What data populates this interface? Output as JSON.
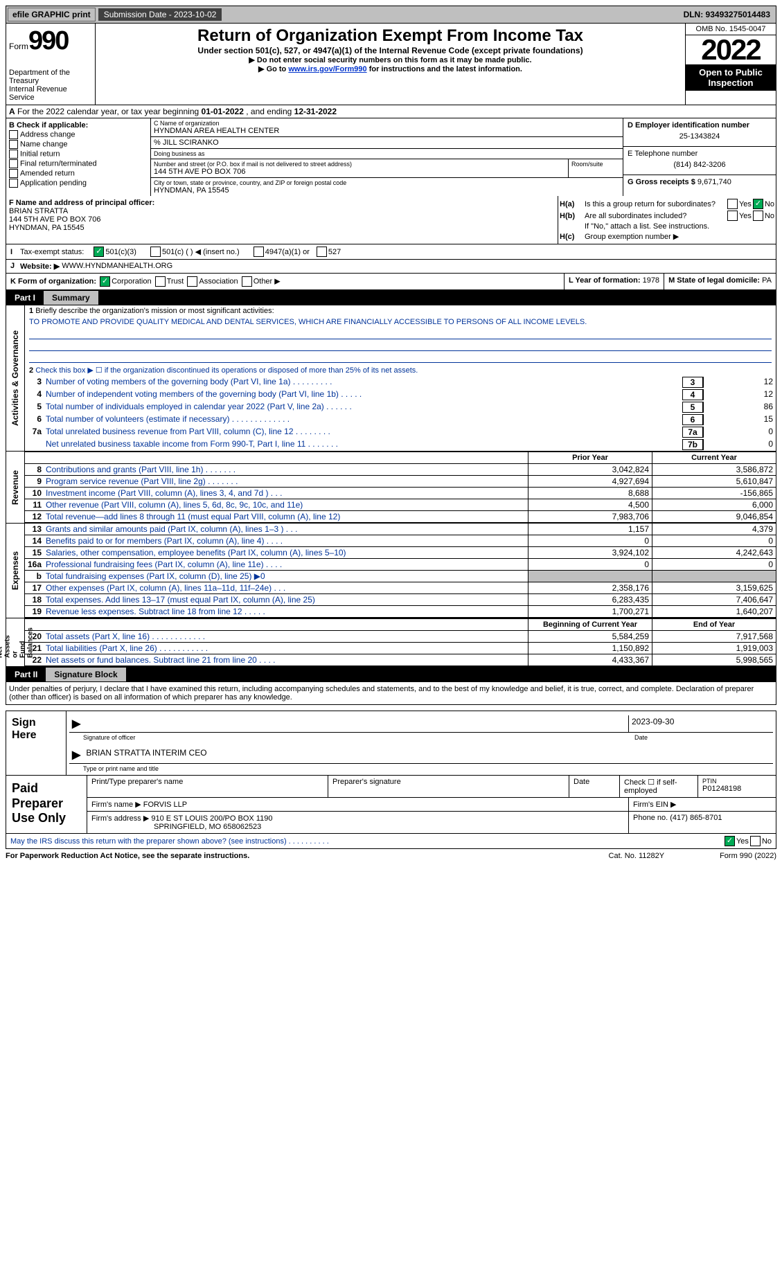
{
  "topbar": {
    "efile": "efile GRAPHIC print",
    "sub": "Submission Date - 2023-10-02",
    "dln": "DLN: 93493275014483"
  },
  "hdr": {
    "formword": "Form",
    "num990": "990",
    "dept": "Department of the Treasury\nInternal Revenue Service",
    "title": "Return of Organization Exempt From Income Tax",
    "sub": "Under section 501(c), 527, or 4947(a)(1) of the Internal Revenue Code (except private foundations)",
    "note1": "▶ Do not enter social security numbers on this form as it may be made public.",
    "note2a": "▶ Go to ",
    "note2link": "www.irs.gov/Form990",
    "note2b": " for instructions and the latest information.",
    "omb": "OMB No. 1545-0047",
    "year": "2022",
    "inspect": "Open to Public Inspection"
  },
  "rowA": {
    "a": "A",
    "txt1": "For the 2022 calendar year, or tax year beginning ",
    "d1": "01-01-2022",
    "txt2": " , and ending ",
    "d2": "12-31-2022"
  },
  "secB": {
    "hdr": "B Check if applicable:",
    "opts": [
      "Address change",
      "Name change",
      "Initial return",
      "Final return/terminated",
      "Amended return",
      "Application pending"
    ]
  },
  "secC": {
    "nameLbl": "C Name of organization",
    "name": "HYNDMAN AREA HEALTH CENTER",
    "care": "% JILL SCIRANKO",
    "dba": "Doing business as",
    "addrLbl": "Number and street (or P.O. box if mail is not delivered to street address)",
    "roomLbl": "Room/suite",
    "addr": "144 5TH AVE PO BOX 706",
    "cityLbl": "City or town, state or province, country, and ZIP or foreign postal code",
    "city": "HYNDMAN, PA  15545"
  },
  "secD": {
    "lbl": "D Employer identification number",
    "val": "25-1343824"
  },
  "secE": {
    "lbl": "E Telephone number",
    "val": "(814) 842-3206"
  },
  "secG": {
    "lbl": "G Gross receipts $",
    "val": "9,671,740"
  },
  "secF": {
    "lbl": "F Name and address of principal officer:",
    "name": "BRIAN STRATTA",
    "addr": "144 5TH AVE PO BOX 706",
    "city": "HYNDMAN, PA  15545"
  },
  "secH": {
    "a": "H(a)",
    "atxt": "Is this a group return for subordinates?",
    "b": "H(b)",
    "btxt": "Are all subordinates included?",
    "bnote": "If \"No,\" attach a list. See instructions.",
    "c": "H(c)",
    "ctxt": "Group exemption number ▶",
    "yes": "Yes",
    "no": "No"
  },
  "rowI": {
    "lbl": "I",
    "txt": "Tax-exempt status:",
    "o1": "501(c)(3)",
    "o2": "501(c) (   ) ◀ (insert no.)",
    "o3": "4947(a)(1) or",
    "o4": "527"
  },
  "rowJ": {
    "lbl": "J",
    "txt": "Website: ▶",
    "val": "WWW.HYNDMANHEALTH.ORG"
  },
  "rowK": {
    "k": "K Form of organization:",
    "opts": [
      "Corporation",
      "Trust",
      "Association",
      "Other ▶"
    ],
    "l": "L Year of formation: ",
    "lval": "1978",
    "m": "M State of legal domicile: ",
    "mval": "PA"
  },
  "part1": {
    "lbl": "Part I",
    "title": "Summary"
  },
  "p1": {
    "l1": "Briefly describe the organization's mission or most significant activities:",
    "mission": "TO PROMOTE AND PROVIDE QUALITY MEDICAL AND DENTAL SERVICES, WHICH ARE FINANCIALLY ACCESSIBLE TO PERSONS OF ALL INCOME LEVELS.",
    "l2": "Check this box ▶ ☐ if the organization discontinued its operations or disposed of more than 25% of its net assets.",
    "rows": [
      {
        "n": "3",
        "lbl": "Number of voting members of the governing body (Part VI, line 1a)  .   .   .   .   .   .   .   .   .",
        "box": "3",
        "val": "12"
      },
      {
        "n": "4",
        "lbl": "Number of independent voting members of the governing body (Part VI, line 1b)  .   .   .   .   .",
        "box": "4",
        "val": "12"
      },
      {
        "n": "5",
        "lbl": "Total number of individuals employed in calendar year 2022 (Part V, line 2a)  .   .   .   .   .   .",
        "box": "5",
        "val": "86"
      },
      {
        "n": "6",
        "lbl": "Total number of volunteers (estimate if necessary)  .   .   .   .   .   .   .   .   .   .   .   .   .",
        "box": "6",
        "val": "15"
      },
      {
        "n": "7a",
        "lbl": "Total unrelated business revenue from Part VIII, column (C), line 12  .   .   .   .   .   .   .   .",
        "box": "7a",
        "val": "0"
      },
      {
        "n": "",
        "lbl": "Net unrelated business taxable income from Form 990-T, Part I, line 11  .   .   .   .   .   .   .",
        "box": "7b",
        "val": "0"
      }
    ]
  },
  "vtabs": {
    "ag": "Activities & Governance",
    "rev": "Revenue",
    "exp": "Expenses",
    "nab": "Net Assets or\nFund Balances"
  },
  "cols": {
    "prior": "Prior Year",
    "curr": "Current Year",
    "beg": "Beginning of Current Year",
    "end": "End of Year"
  },
  "rev": [
    {
      "n": "8",
      "lbl": "Contributions and grants (Part VIII, line 1h)  .   .   .   .   .   .   .",
      "p": "3,042,824",
      "c": "3,586,872"
    },
    {
      "n": "9",
      "lbl": "Program service revenue (Part VIII, line 2g)  .   .   .   .   .   .   .",
      "p": "4,927,694",
      "c": "5,610,847"
    },
    {
      "n": "10",
      "lbl": "Investment income (Part VIII, column (A), lines 3, 4, and 7d )  .   .   .",
      "p": "8,688",
      "c": "-156,865"
    },
    {
      "n": "11",
      "lbl": "Other revenue (Part VIII, column (A), lines 5, 6d, 8c, 9c, 10c, and 11e)",
      "p": "4,500",
      "c": "6,000"
    },
    {
      "n": "12",
      "lbl": "Total revenue—add lines 8 through 11 (must equal Part VIII, column (A), line 12)",
      "p": "7,983,706",
      "c": "9,046,854"
    }
  ],
  "exp": [
    {
      "n": "13",
      "lbl": "Grants and similar amounts paid (Part IX, column (A), lines 1–3 )  .   .   .",
      "p": "1,157",
      "c": "4,379"
    },
    {
      "n": "14",
      "lbl": "Benefits paid to or for members (Part IX, column (A), line 4)  .   .   .   .",
      "p": "0",
      "c": "0"
    },
    {
      "n": "15",
      "lbl": "Salaries, other compensation, employee benefits (Part IX, column (A), lines 5–10)",
      "p": "3,924,102",
      "c": "4,242,643"
    },
    {
      "n": "16a",
      "lbl": "Professional fundraising fees (Part IX, column (A), line 11e)  .   .   .   .",
      "p": "0",
      "c": "0"
    },
    {
      "n": "b",
      "lbl": "Total fundraising expenses (Part IX, column (D), line 25) ▶0",
      "grey": true
    },
    {
      "n": "17",
      "lbl": "Other expenses (Part IX, column (A), lines 11a–11d, 11f–24e)  .   .   .",
      "p": "2,358,176",
      "c": "3,159,625"
    },
    {
      "n": "18",
      "lbl": "Total expenses. Add lines 13–17 (must equal Part IX, column (A), line 25)",
      "p": "6,283,435",
      "c": "7,406,647"
    },
    {
      "n": "19",
      "lbl": "Revenue less expenses. Subtract line 18 from line 12  .   .   .   .   .",
      "p": "1,700,271",
      "c": "1,640,207"
    }
  ],
  "nab": [
    {
      "n": "20",
      "lbl": "Total assets (Part X, line 16)  .   .   .   .   .   .   .   .   .   .   .   .",
      "p": "5,584,259",
      "c": "7,917,568"
    },
    {
      "n": "21",
      "lbl": "Total liabilities (Part X, line 26)  .   .   .   .   .   .   .   .   .   .   .",
      "p": "1,150,892",
      "c": "1,919,003"
    },
    {
      "n": "22",
      "lbl": "Net assets or fund balances. Subtract line 21 from line 20  .   .   .   .",
      "p": "4,433,367",
      "c": "5,998,565"
    }
  ],
  "part2": {
    "lbl": "Part II",
    "title": "Signature Block",
    "decl": "Under penalties of perjury, I declare that I have examined this return, including accompanying schedules and statements, and to the best of my knowledge and belief, it is true, correct, and complete. Declaration of preparer (other than officer) is based on all information of which preparer has any knowledge."
  },
  "sign": {
    "hdr": "Sign Here",
    "sigLbl": "Signature of officer",
    "date": "2023-09-30",
    "dateLbl": "Date",
    "name": "BRIAN STRATTA INTERIM CEO",
    "nameLbl": "Type or print name and title"
  },
  "prep": {
    "hdr": "Paid Preparer Use Only",
    "r1": {
      "c1": "Print/Type preparer's name",
      "c2": "Preparer's signature",
      "c3": "Date",
      "c4": "Check ☐ if self-employed",
      "c5": "PTIN",
      "c5v": "P01248198"
    },
    "r2": {
      "c1": "Firm's name      ▶",
      "c1v": "FORVIS LLP",
      "c2": "Firm's EIN ▶"
    },
    "r3": {
      "c1": "Firm's address ▶",
      "c1v": "910 E ST LOUIS 200/PO BOX 1190",
      "c1v2": "SPRINGFIELD, MO  658062523",
      "c2": "Phone no. (417) 865-8701"
    }
  },
  "may": {
    "txt": "May the IRS discuss this return with the preparer shown above? (see instructions)  .   .   .   .   .   .   .   .   .   .",
    "yes": "Yes",
    "no": "No"
  },
  "foot": {
    "f1": "For Paperwork Reduction Act Notice, see the separate instructions.",
    "f2": "Cat. No. 11282Y",
    "f3": "Form 990 (2022)"
  }
}
